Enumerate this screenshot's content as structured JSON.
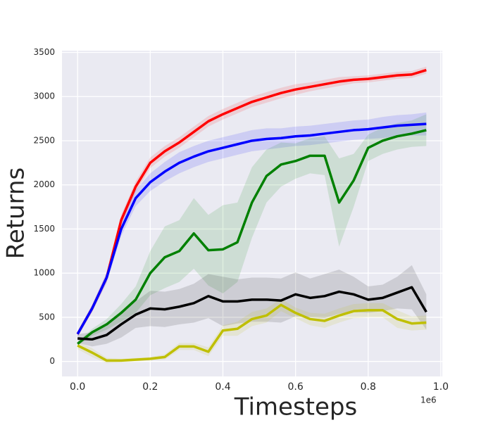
{
  "chart_data": {
    "type": "line",
    "xlabel": "Timesteps",
    "ylabel": "Returns",
    "x_offset_label": "1e6",
    "x": [
      0,
      0.04,
      0.08,
      0.12,
      0.16,
      0.2,
      0.24,
      0.28,
      0.32,
      0.36,
      0.4,
      0.44,
      0.48,
      0.52,
      0.56,
      0.6,
      0.64,
      0.68,
      0.72,
      0.76,
      0.8,
      0.84,
      0.88,
      0.92,
      0.96
    ],
    "series": [
      {
        "color": "#ff0000",
        "values": [
          310,
          600,
          950,
          1600,
          1980,
          2250,
          2380,
          2480,
          2600,
          2720,
          2800,
          2870,
          2940,
          2990,
          3040,
          3080,
          3110,
          3140,
          3170,
          3190,
          3200,
          3220,
          3240,
          3250,
          3300
        ],
        "errors": [
          30,
          40,
          50,
          60,
          60,
          60,
          60,
          60,
          60,
          60,
          60,
          60,
          60,
          60,
          60,
          60,
          50,
          50,
          50,
          40,
          40,
          40,
          40,
          40,
          40
        ]
      },
      {
        "color": "#0000ff",
        "values": [
          310,
          600,
          950,
          1500,
          1850,
          2030,
          2150,
          2250,
          2320,
          2380,
          2420,
          2460,
          2500,
          2520,
          2530,
          2550,
          2560,
          2580,
          2600,
          2620,
          2630,
          2650,
          2670,
          2680,
          2690
        ],
        "errors": [
          30,
          40,
          60,
          80,
          90,
          100,
          110,
          120,
          120,
          120,
          120,
          120,
          120,
          120,
          110,
          110,
          110,
          110,
          110,
          110,
          110,
          120,
          120,
          120,
          130
        ]
      },
      {
        "color": "#008000",
        "values": [
          200,
          330,
          420,
          550,
          700,
          1000,
          1180,
          1250,
          1450,
          1260,
          1270,
          1350,
          1800,
          2100,
          2230,
          2270,
          2330,
          2330,
          1800,
          2050,
          2420,
          2500,
          2550,
          2580,
          2620
        ],
        "errors": [
          20,
          40,
          60,
          100,
          150,
          250,
          350,
          350,
          400,
          400,
          500,
          450,
          400,
          300,
          250,
          200,
          200,
          220,
          500,
          300,
          150,
          150,
          150,
          150,
          180
        ]
      },
      {
        "color": "#000000",
        "values": [
          260,
          250,
          300,
          420,
          530,
          600,
          590,
          620,
          660,
          740,
          680,
          680,
          700,
          700,
          690,
          760,
          720,
          740,
          790,
          760,
          700,
          720,
          780,
          840,
          560
        ],
        "errors": [
          50,
          80,
          100,
          150,
          150,
          200,
          200,
          200,
          220,
          250,
          280,
          250,
          250,
          250,
          250,
          250,
          220,
          250,
          250,
          200,
          150,
          150,
          180,
          250,
          200
        ]
      },
      {
        "color": "#bfbf00",
        "values": [
          180,
          100,
          10,
          10,
          20,
          30,
          50,
          170,
          170,
          110,
          350,
          370,
          480,
          520,
          640,
          550,
          480,
          460,
          520,
          570,
          580,
          580,
          480,
          430,
          440
        ],
        "errors": [
          40,
          50,
          30,
          20,
          20,
          20,
          30,
          40,
          40,
          50,
          60,
          80,
          80,
          80,
          70,
          60,
          70,
          80,
          80,
          80,
          80,
          80,
          100,
          80,
          80
        ]
      }
    ],
    "xlim": [
      -0.043,
      1.004
    ],
    "ylim": [
      -170,
      3520
    ],
    "xticks": [
      {
        "value": 0,
        "label": "0.0"
      },
      0.2,
      0.4,
      0.6,
      0.8,
      {
        "value": 1,
        "label": "1.0"
      }
    ],
    "yticks": [
      0,
      500,
      1000,
      1500,
      2000,
      2500,
      3000,
      3500
    ],
    "grid": true
  }
}
